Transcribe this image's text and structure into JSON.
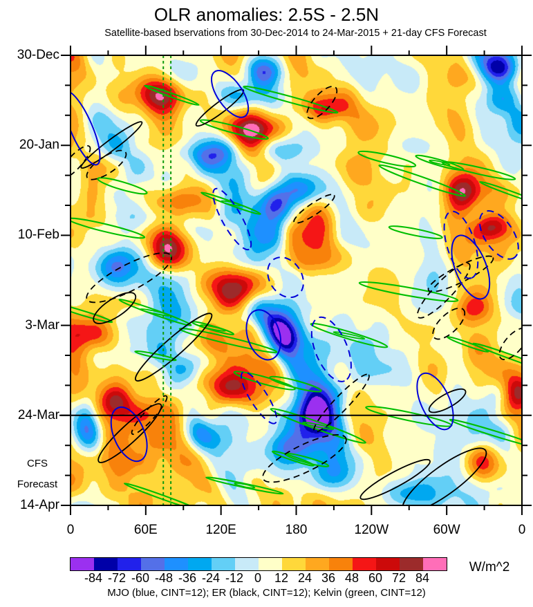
{
  "title": "OLR anomalies: 2.5S - 2.5N",
  "subtitle": "Satellite-based bservations from 30-Dec-2014 to 24-Mar-2015 + 21-day CFS Forecast",
  "axes": {
    "y_tick_labels": [
      "30-Dec",
      "20-Jan",
      "10-Feb",
      "3-Mar",
      "24-Mar",
      "14-Apr"
    ],
    "x_tick_labels": [
      "0",
      "60E",
      "120E",
      "180",
      "120W",
      "60W",
      "0"
    ],
    "forecast_annotation": {
      "line1": "CFS",
      "line2": "Forecast"
    }
  },
  "colorbar": {
    "tick_labels": [
      "-84",
      "-72",
      "-60",
      "-48",
      "-36",
      "-24",
      "-12",
      "0",
      "12",
      "24",
      "36",
      "48",
      "60",
      "72",
      "84"
    ],
    "colors": [
      "#9B30F0",
      "#0000A8",
      "#2121EB",
      "#5470E8",
      "#1E90FF",
      "#00A8F0",
      "#63CFF6",
      "#C8EAF8",
      "#FFFFC8",
      "#FFD83A",
      "#FFA81F",
      "#F8820B",
      "#F51616",
      "#CC0A0A",
      "#9C2B2B",
      "#FF6EB8"
    ],
    "units_label": "W/m^2"
  },
  "caption": "MJO (blue, CINT=12); ER (black, CINT=12); Kelvin (green, CINT=12)",
  "chart_data": {
    "type": "heatmap",
    "title": "OLR anomalies: 2.5S - 2.5N",
    "subtitle": "Satellite-based bservations from 30-Dec-2014 to 24-Mar-2015 + 21-day CFS Forecast",
    "value_units": "W/m^2",
    "x_axis": {
      "label_ticks": [
        "0",
        "60E",
        "120E",
        "180",
        "120W",
        "60W",
        "0"
      ],
      "range_degrees_east": [
        0,
        360
      ],
      "minor_tick_step_degrees": 30
    },
    "y_axis": {
      "label_ticks": [
        "30-Dec",
        "20-Jan",
        "10-Feb",
        "3-Mar",
        "24-Mar",
        "14-Apr"
      ],
      "range_dates": [
        "30-Dec-2014",
        "14-Apr-2015"
      ],
      "major_tick_step_days": 21,
      "minor_tick_step_days": 7,
      "direction": "time increases downward"
    },
    "observation_period": {
      "start": "30-Dec-2014",
      "end": "24-Mar-2015"
    },
    "forecast": {
      "model": "CFS",
      "length_days": 21,
      "divider_date": "24-Mar"
    },
    "fill_contour_levels": [
      -84,
      -72,
      -60,
      -48,
      -36,
      -24,
      -12,
      0,
      12,
      24,
      36,
      48,
      60,
      72,
      84
    ],
    "fill_palette": [
      "#9B30F0",
      "#0000A8",
      "#2121EB",
      "#5470E8",
      "#1E90FF",
      "#00A8F0",
      "#63CFF6",
      "#C8EAF8",
      "#FFFFC8",
      "#FFD83A",
      "#FFA81F",
      "#F8820B",
      "#F51616",
      "#CC0A0A",
      "#9C2B2B",
      "#FF6EB8"
    ],
    "overlay_contours": [
      {
        "name": "MJO",
        "color": "blue",
        "contour_interval": 12
      },
      {
        "name": "ER",
        "color": "black",
        "contour_interval": 12
      },
      {
        "name": "Kelvin",
        "color": "green",
        "contour_interval": 12
      }
    ],
    "reference_lines": [
      {
        "type": "horizontal",
        "at": "24-Mar",
        "style": "solid black",
        "meaning": "end of observations / start of CFS forecast"
      },
      {
        "type": "vertical",
        "at_degrees_east": 74,
        "style": "dashed green"
      },
      {
        "type": "vertical",
        "at_degrees_east": 80,
        "style": "dashed green"
      }
    ]
  }
}
